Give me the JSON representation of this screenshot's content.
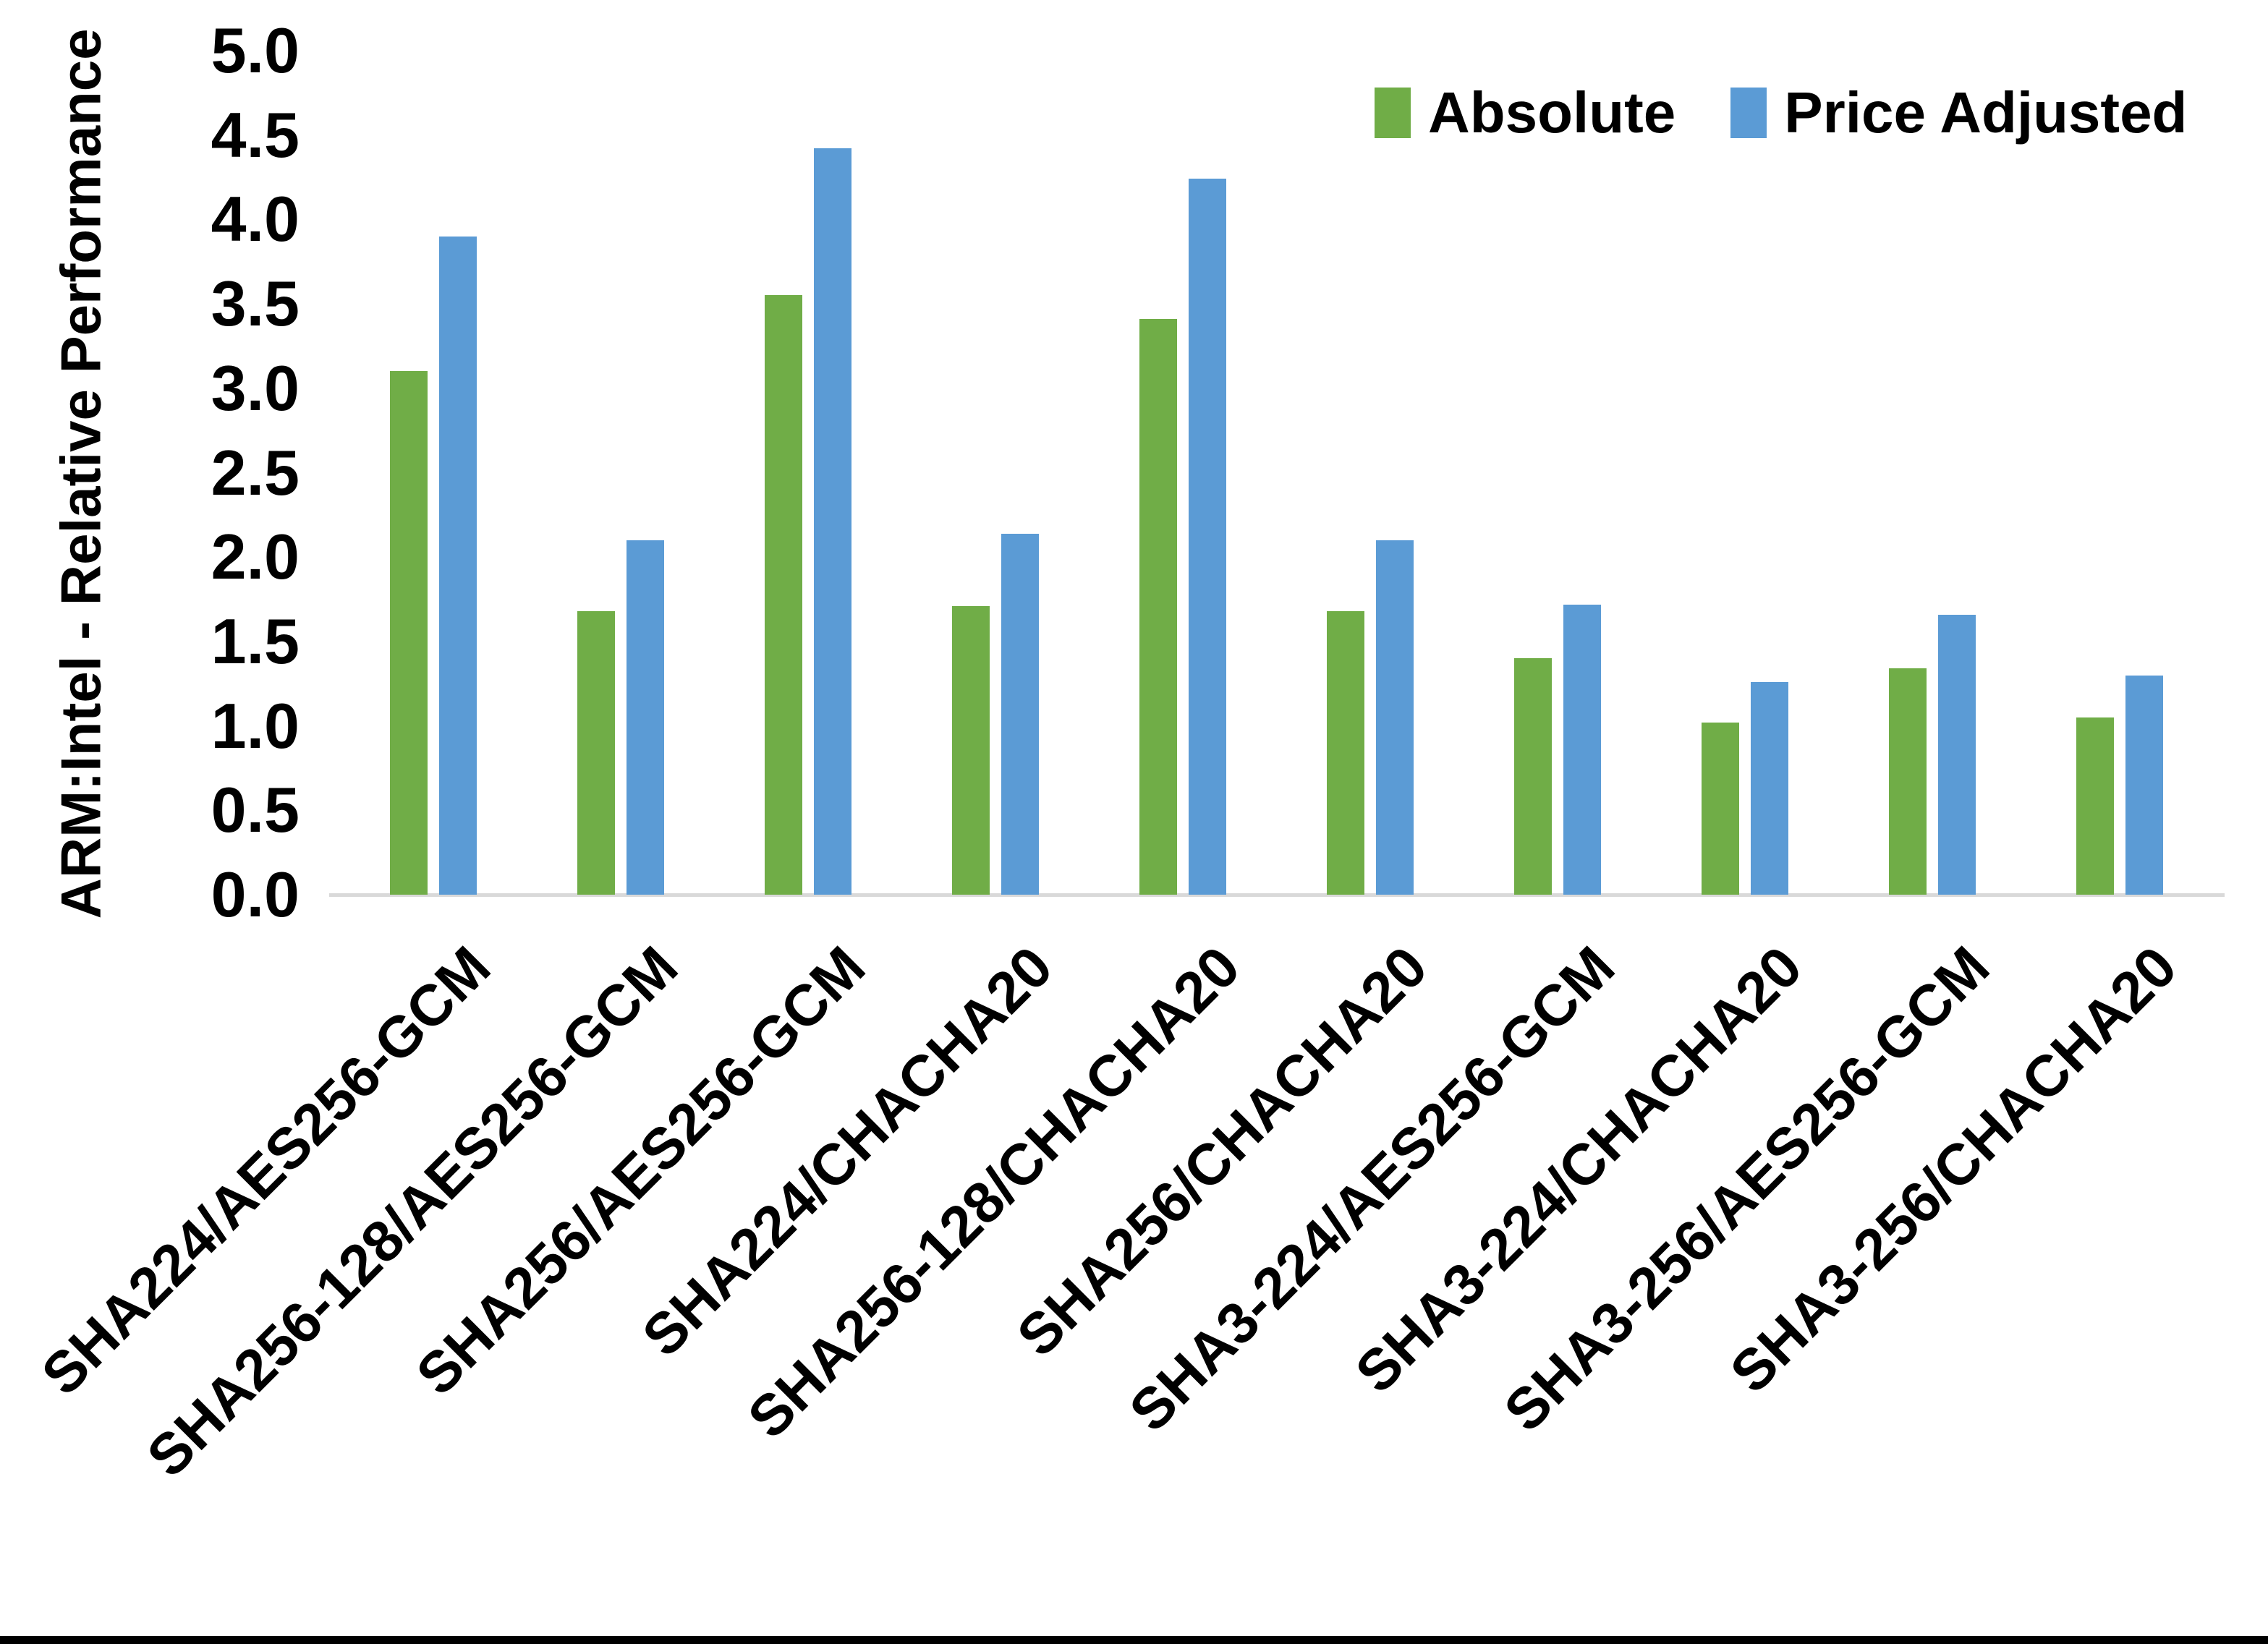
{
  "chart_data": {
    "type": "bar",
    "title": "",
    "ylabel": "ARM:Intel - Relative Performance",
    "xlabel": "",
    "ylim": [
      0.0,
      5.0
    ],
    "ytick_step": 0.5,
    "yticks": [
      "5.0",
      "4.5",
      "4.0",
      "3.5",
      "3.0",
      "2.5",
      "2.0",
      "1.5",
      "1.0",
      "0.5",
      "0.0"
    ],
    "grid": false,
    "legend_position": "top-right",
    "categories": [
      "SHA224/AES256-GCM",
      "SHA256-128/AES256-GCM",
      "SHA256/AES256-GCM",
      "SHA224/CHACHA20",
      "SHA256-128/CHACHA20",
      "SHA256/CHACHA20",
      "SHA3-224/AES256-GCM",
      "SHA3-224/CHACHA20",
      "SHA3-256/AES256-GCM",
      "SHA3-256/CHACHA20"
    ],
    "series": [
      {
        "name": "Absolute",
        "color": "#70AD47",
        "values": [
          3.1,
          1.68,
          3.55,
          1.71,
          3.41,
          1.68,
          1.4,
          1.02,
          1.34,
          1.05
        ]
      },
      {
        "name": "Price Adjusted",
        "color": "#5B9BD5",
        "values": [
          3.9,
          2.1,
          4.42,
          2.14,
          4.24,
          2.1,
          1.72,
          1.26,
          1.66,
          1.3
        ]
      }
    ],
    "axis_line_color": "#D9D9D9",
    "text_color": "#000000"
  },
  "frame": {
    "bottom_border_color": "#000000"
  }
}
